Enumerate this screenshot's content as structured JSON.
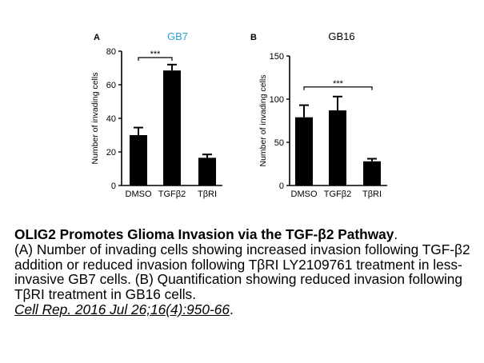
{
  "chart_data": [
    {
      "type": "bar",
      "panel_label": "A",
      "title": "GB7",
      "title_color": "#29a3d6",
      "categories": [
        "DMSO",
        "TGFβ2",
        "TβRI"
      ],
      "values": [
        30,
        68.5,
        16.5
      ],
      "errors": [
        4.5,
        3.5,
        2
      ],
      "ylabel": "Number of invading cells",
      "ylim": [
        0,
        80
      ],
      "yticks": [
        "0",
        "20",
        "40",
        "60",
        "80"
      ],
      "significance": {
        "from": 0,
        "to": 1,
        "label": "***"
      },
      "bar_color": "#000000"
    },
    {
      "type": "bar",
      "panel_label": "B",
      "title": "GB16",
      "title_color": "#000000",
      "categories": [
        "DMSO",
        "TGFβ2",
        "TβRI"
      ],
      "values": [
        79,
        87,
        28
      ],
      "errors": [
        14,
        16,
        3
      ],
      "ylabel": "Number of invading cells",
      "ylim": [
        0,
        150
      ],
      "yticks": [
        "0",
        "50",
        "100",
        "150"
      ],
      "significance": {
        "from": 0,
        "to": 2,
        "label": "***"
      },
      "bar_color": "#000000"
    }
  ],
  "caption": {
    "title": "OLIG2 Promotes Glioma Invasion via the TGF-β2 Pathway",
    "title_end": ".",
    "body": "(A) Number of invading cells showing increased invasion following TGF-β2 addition or reduced invasion following TβRI LY2109761 treatment in less-invasive GB7 cells. (B) Quantification showing reduced invasion following TβRI treatment in GB16 cells.",
    "citation": "Cell Rep. 2016 Jul 26;16(4):950-66",
    "citation_end": "."
  }
}
